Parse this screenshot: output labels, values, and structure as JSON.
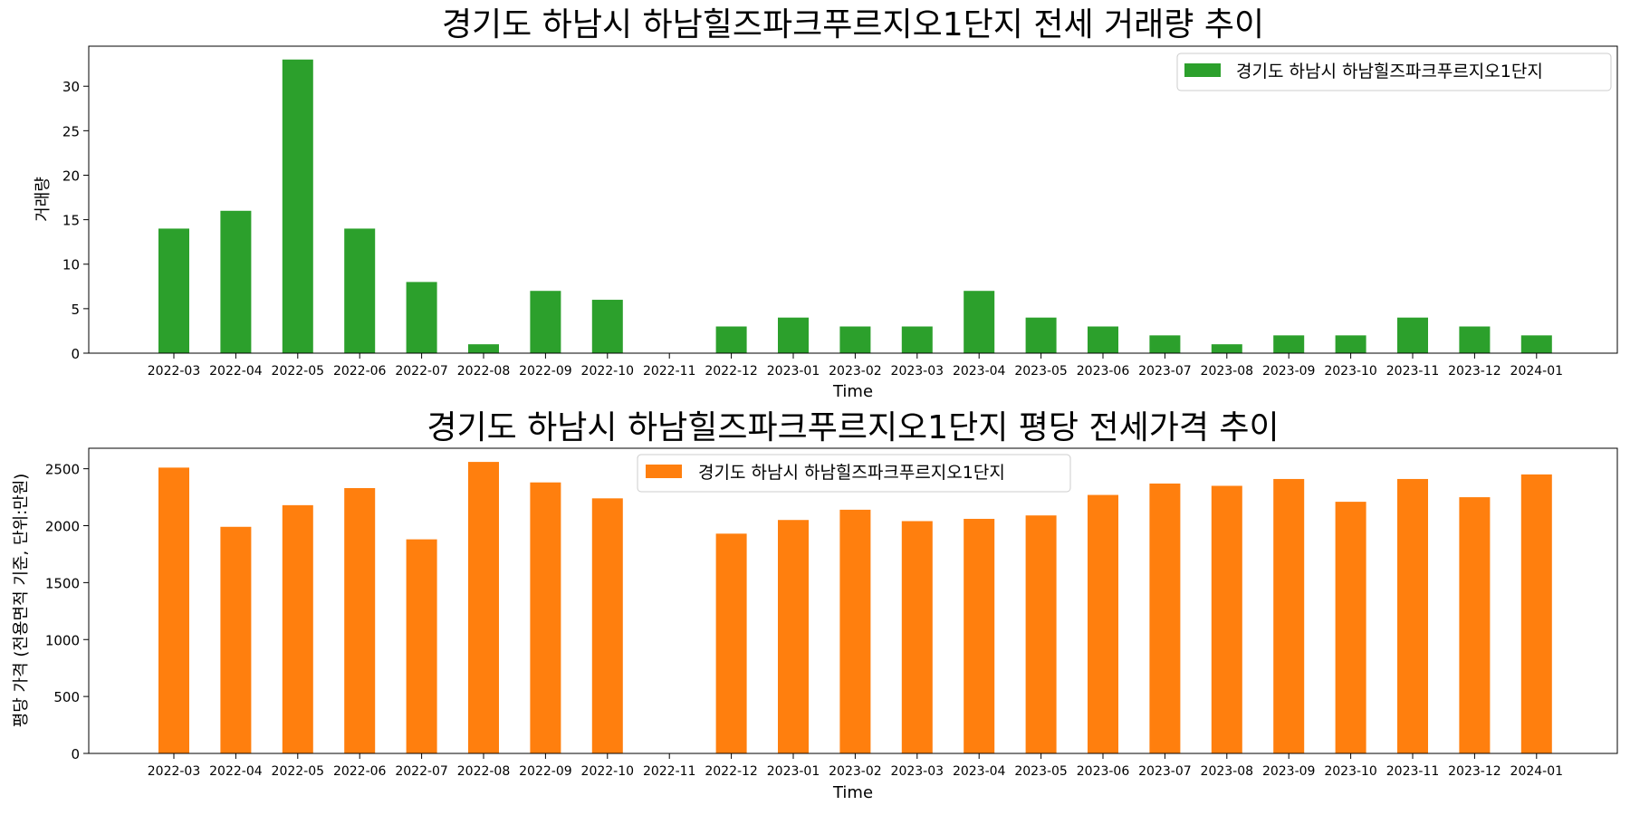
{
  "chart_data": [
    {
      "type": "bar",
      "title": "경기도 하남시 하남힐즈파크푸르지오1단지 전세 거래량 추이",
      "xlabel": "Time",
      "ylabel": "거래량",
      "categories": [
        "2022-03",
        "2022-04",
        "2022-05",
        "2022-06",
        "2022-07",
        "2022-08",
        "2022-09",
        "2022-10",
        "2022-11",
        "2022-12",
        "2023-01",
        "2023-02",
        "2023-03",
        "2023-04",
        "2023-05",
        "2023-06",
        "2023-07",
        "2023-08",
        "2023-09",
        "2023-10",
        "2023-11",
        "2023-12",
        "2024-01"
      ],
      "series": [
        {
          "name": "경기도 하남시 하남힐즈파크푸르지오1단지",
          "color": "#2ca02c",
          "values": [
            14,
            16,
            33,
            14,
            8,
            1,
            7,
            6,
            0,
            3,
            4,
            3,
            3,
            7,
            4,
            3,
            2,
            1,
            2,
            2,
            4,
            3,
            2
          ]
        }
      ],
      "ylim": [
        0,
        34.5
      ],
      "yticks": [
        0,
        5,
        10,
        15,
        20,
        25,
        30
      ],
      "legend_position": "top-right",
      "grid": false
    },
    {
      "type": "bar",
      "title": "경기도 하남시 하남힐즈파크푸르지오1단지 평당 전세가격 추이",
      "xlabel": "Time",
      "ylabel": "평당 가격 (전용면적 기준, 단위:만원)",
      "categories": [
        "2022-03",
        "2022-04",
        "2022-05",
        "2022-06",
        "2022-07",
        "2022-08",
        "2022-09",
        "2022-10",
        "2022-11",
        "2022-12",
        "2023-01",
        "2023-02",
        "2023-03",
        "2023-04",
        "2023-05",
        "2023-06",
        "2023-07",
        "2023-08",
        "2023-09",
        "2023-10",
        "2023-11",
        "2023-12",
        "2024-01"
      ],
      "series": [
        {
          "name": "경기도 하남시 하남힐즈파크푸르지오1단지",
          "color": "#ff7f0e",
          "values": [
            2510,
            1990,
            2180,
            2330,
            1880,
            2560,
            2380,
            2240,
            null,
            1930,
            2050,
            2140,
            2040,
            2060,
            2090,
            2270,
            2370,
            2350,
            2410,
            2210,
            2410,
            2250,
            2450
          ]
        }
      ],
      "ylim": [
        0,
        2680
      ],
      "yticks": [
        0,
        500,
        1000,
        1500,
        2000,
        2500
      ],
      "legend_position": "upper-center",
      "grid": false
    }
  ]
}
